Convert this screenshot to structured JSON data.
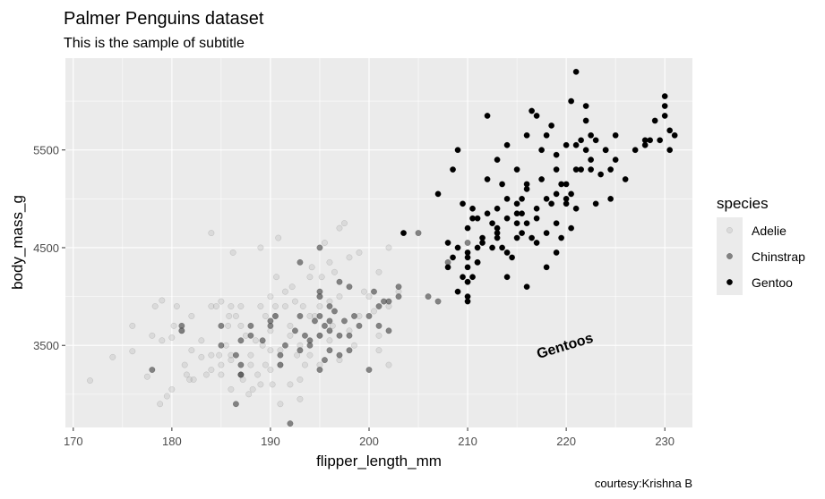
{
  "chart_data": {
    "type": "scatter",
    "title": "Palmer Penguins dataset",
    "subtitle": "This is the sample of subtitle",
    "xlabel": "flipper_length_mm",
    "ylabel": "body_mass_g",
    "caption": "courtesy:Krishna B",
    "xlim": [
      169.2,
      232.8
    ],
    "ylim": [
      2660,
      6440
    ],
    "xticks": [
      170,
      180,
      190,
      200,
      210,
      220,
      230
    ],
    "yticks": [
      3500,
      4500,
      5500
    ],
    "legend": {
      "title": "species",
      "position": "right",
      "entries": [
        {
          "name": "Adelie",
          "color": "#bbbbbb",
          "opacity": 0.35
        },
        {
          "name": "Chinstrap",
          "color": "#555555",
          "opacity": 0.7
        },
        {
          "name": "Gentoo",
          "color": "#000000",
          "opacity": 1.0
        }
      ]
    },
    "annotation": {
      "text": "Gentoos",
      "x": 220,
      "y": 3450,
      "angle": -17
    },
    "grid": true,
    "panel_background": "#ebebeb",
    "series": [
      {
        "name": "Adelie",
        "points": [
          [
            171.7,
            3140
          ],
          [
            174,
            3380
          ],
          [
            176,
            3440
          ],
          [
            177.5,
            3180
          ],
          [
            178,
            3600
          ],
          [
            178.3,
            3900
          ],
          [
            179,
            3960
          ],
          [
            178.8,
            2900
          ],
          [
            179.5,
            2980
          ],
          [
            180,
            3580
          ],
          [
            180.2,
            3700
          ],
          [
            180.5,
            3900
          ],
          [
            181,
            3650
          ],
          [
            181.3,
            3300
          ],
          [
            181.5,
            3200
          ],
          [
            181.8,
            3150
          ],
          [
            182,
            3800
          ],
          [
            182,
            3450
          ],
          [
            182.2,
            3150
          ],
          [
            183,
            3550
          ],
          [
            183,
            3380
          ],
          [
            183.5,
            3200
          ],
          [
            184,
            3900
          ],
          [
            184,
            3400
          ],
          [
            184,
            4650
          ],
          [
            184.5,
            3900
          ],
          [
            184.8,
            3400
          ],
          [
            185,
            3950
          ],
          [
            185,
            3300
          ],
          [
            185,
            3200
          ],
          [
            185.5,
            3500
          ],
          [
            185.7,
            3700
          ],
          [
            185.8,
            3800
          ],
          [
            186,
            3400
          ],
          [
            186,
            3350
          ],
          [
            186,
            3050
          ],
          [
            186.2,
            4450
          ],
          [
            186.5,
            3800
          ],
          [
            187,
            3900
          ],
          [
            187,
            3700
          ],
          [
            187.2,
            3150
          ],
          [
            187.5,
            3600
          ],
          [
            187.8,
            3000
          ],
          [
            188,
            3400
          ],
          [
            188,
            3300
          ],
          [
            188.2,
            3050
          ],
          [
            188.5,
            3550
          ],
          [
            188.7,
            3200
          ],
          [
            189,
            3900
          ],
          [
            189,
            3100
          ],
          [
            189,
            4500
          ],
          [
            189.2,
            3500
          ],
          [
            189.5,
            3800
          ],
          [
            189.5,
            3300
          ],
          [
            190,
            4000
          ],
          [
            190,
            3450
          ],
          [
            190,
            3250
          ],
          [
            190.2,
            3100
          ],
          [
            190.5,
            3900
          ],
          [
            190.5,
            3800
          ],
          [
            190.6,
            4200
          ],
          [
            190.8,
            4600
          ],
          [
            191,
            3450
          ],
          [
            191,
            3300
          ],
          [
            191,
            2900
          ],
          [
            191.5,
            3900
          ],
          [
            191.5,
            4050
          ],
          [
            192,
            3700
          ],
          [
            192,
            3600
          ],
          [
            192,
            3100
          ],
          [
            192.2,
            4100
          ],
          [
            192.5,
            3950
          ],
          [
            192.7,
            3400
          ],
          [
            193,
            3500
          ],
          [
            193,
            3150
          ],
          [
            193,
            2950
          ],
          [
            193.3,
            3900
          ],
          [
            193.5,
            3300
          ],
          [
            194,
            3800
          ],
          [
            194,
            3400
          ],
          [
            194.2,
            4300
          ],
          [
            194.5,
            3800
          ],
          [
            195,
            4000
          ],
          [
            195,
            3600
          ],
          [
            195,
            3300
          ],
          [
            195.2,
            4200
          ],
          [
            195.5,
            4550
          ],
          [
            196,
            3550
          ],
          [
            196,
            4350
          ],
          [
            196.3,
            3700
          ],
          [
            196.5,
            4250
          ],
          [
            197,
            4700
          ],
          [
            197,
            3350
          ],
          [
            197,
            4000
          ],
          [
            197.5,
            4750
          ],
          [
            198,
            3650
          ],
          [
            198,
            4400
          ],
          [
            198.5,
            3500
          ],
          [
            199,
            4450
          ],
          [
            199,
            3800
          ],
          [
            199.5,
            4050
          ],
          [
            200,
            4000
          ],
          [
            200.5,
            3850
          ],
          [
            201,
            4250
          ],
          [
            202,
            3900
          ],
          [
            202,
            4500
          ],
          [
            202,
            3300
          ],
          [
            203,
            4050
          ],
          [
            201,
            3600
          ],
          [
            201,
            3450
          ],
          [
            184,
            3250
          ],
          [
            186,
            3900
          ],
          [
            190,
            3650
          ],
          [
            195,
            3900
          ],
          [
            176,
            3700
          ],
          [
            179,
            3550
          ],
          [
            194,
            4200
          ],
          [
            196,
            3950
          ],
          [
            180,
            3050
          ]
        ]
      },
      {
        "name": "Chinstrap",
        "points": [
          [
            178,
            3250
          ],
          [
            181,
            3700
          ],
          [
            181,
            3650
          ],
          [
            185,
            3700
          ],
          [
            185,
            3500
          ],
          [
            186.5,
            3400
          ],
          [
            187,
            3300
          ],
          [
            187,
            3200
          ],
          [
            187,
            3550
          ],
          [
            187,
            3200
          ],
          [
            186.5,
            2900
          ],
          [
            188,
            3600
          ],
          [
            188,
            3700
          ],
          [
            189.2,
            3550
          ],
          [
            190,
            3700
          ],
          [
            190,
            3750
          ],
          [
            190.5,
            3800
          ],
          [
            191,
            3400
          ],
          [
            191,
            3300
          ],
          [
            191.5,
            3500
          ],
          [
            192,
            2700
          ],
          [
            192.5,
            3650
          ],
          [
            193,
            3450
          ],
          [
            193.5,
            3600
          ],
          [
            193,
            3800
          ],
          [
            194,
            3550
          ],
          [
            194,
            3500
          ],
          [
            194.5,
            3750
          ],
          [
            195,
            3600
          ],
          [
            195,
            3800
          ],
          [
            195,
            3250
          ],
          [
            195,
            4050
          ],
          [
            195,
            4500
          ],
          [
            195.5,
            3700
          ],
          [
            195.5,
            3350
          ],
          [
            196,
            3900
          ],
          [
            196,
            3650
          ],
          [
            196,
            3450
          ],
          [
            196.5,
            3850
          ],
          [
            197,
            3400
          ],
          [
            197,
            4150
          ],
          [
            197,
            3600
          ],
          [
            197.5,
            3750
          ],
          [
            198,
            3600
          ],
          [
            198,
            4100
          ],
          [
            198,
            3450
          ],
          [
            198.5,
            3800
          ],
          [
            199,
            3700
          ],
          [
            200,
            3800
          ],
          [
            200,
            3250
          ],
          [
            200.5,
            4050
          ],
          [
            201,
            3700
          ],
          [
            201.5,
            3950
          ],
          [
            201,
            3900
          ],
          [
            202,
            3950
          ],
          [
            202,
            3650
          ],
          [
            203,
            4100
          ],
          [
            203,
            4000
          ],
          [
            205,
            4650
          ],
          [
            206,
            4000
          ],
          [
            207,
            3950
          ],
          [
            208,
            4350
          ],
          [
            210,
            4550
          ],
          [
            210,
            4150
          ],
          [
            195,
            4000
          ],
          [
            193,
            4350
          ],
          [
            196,
            3750
          ]
        ]
      },
      {
        "name": "Gentoo",
        "points": [
          [
            203.5,
            4650
          ],
          [
            208,
            4550
          ],
          [
            208,
            4300
          ],
          [
            208.5,
            4400
          ],
          [
            209,
            4500
          ],
          [
            209,
            4050
          ],
          [
            209.5,
            4200
          ],
          [
            210,
            4400
          ],
          [
            210,
            4150
          ],
          [
            210,
            4300
          ],
          [
            210,
            4700
          ],
          [
            210,
            3950
          ],
          [
            210,
            4000
          ],
          [
            210.5,
            4200
          ],
          [
            210.5,
            4900
          ],
          [
            211,
            4350
          ],
          [
            211,
            4500
          ],
          [
            211,
            4800
          ],
          [
            211.5,
            4600
          ],
          [
            212,
            4850
          ],
          [
            212.5,
            4750
          ],
          [
            213,
            4700
          ],
          [
            213,
            4600
          ],
          [
            213,
            4900
          ],
          [
            213.5,
            4500
          ],
          [
            214,
            4800
          ],
          [
            214,
            5000
          ],
          [
            214.5,
            4400
          ],
          [
            215,
            4950
          ],
          [
            215,
            4750
          ],
          [
            215,
            4850
          ],
          [
            215.5,
            5000
          ],
          [
            215.5,
            4650
          ],
          [
            216,
            4100
          ],
          [
            216,
            5150
          ],
          [
            216,
            4750
          ],
          [
            216.5,
            4600
          ],
          [
            217,
            4800
          ],
          [
            217,
            4550
          ],
          [
            217.5,
            5200
          ],
          [
            218,
            5000
          ],
          [
            218,
            4650
          ],
          [
            218.5,
            4950
          ],
          [
            219,
            4750
          ],
          [
            219,
            5300
          ],
          [
            219.5,
            4600
          ],
          [
            220,
            5150
          ],
          [
            220,
            5000
          ],
          [
            220.5,
            5050
          ],
          [
            220.5,
            4700
          ],
          [
            221,
            5300
          ],
          [
            221,
            4900
          ],
          [
            221.5,
            5600
          ],
          [
            222,
            5800
          ],
          [
            222,
            5500
          ],
          [
            222.5,
            5400
          ],
          [
            223,
            5600
          ],
          [
            223,
            4950
          ],
          [
            224,
            5500
          ],
          [
            224.5,
            5000
          ],
          [
            225,
            5400
          ],
          [
            226,
            5200
          ],
          [
            228,
            5600
          ],
          [
            228.5,
            5600
          ],
          [
            229,
            5800
          ],
          [
            230,
            5950
          ],
          [
            230,
            5850
          ],
          [
            230.5,
            5700
          ],
          [
            230.5,
            5500
          ],
          [
            231,
            5650
          ],
          [
            230,
            6050
          ],
          [
            212,
            5850
          ],
          [
            213,
            5400
          ],
          [
            214,
            5550
          ],
          [
            215,
            5300
          ],
          [
            216,
            5650
          ],
          [
            217,
            5850
          ],
          [
            217.5,
            5500
          ],
          [
            218.5,
            5750
          ],
          [
            219,
            5050
          ],
          [
            220,
            5550
          ],
          [
            220.5,
            6000
          ],
          [
            221.5,
            5300
          ],
          [
            222,
            5950
          ],
          [
            222.5,
            5650
          ],
          [
            223.5,
            5250
          ],
          [
            224,
            5500
          ],
          [
            221,
            6300
          ],
          [
            207,
            5050
          ],
          [
            208.5,
            5300
          ],
          [
            209,
            5500
          ],
          [
            212,
            5200
          ],
          [
            213.5,
            5150
          ],
          [
            211,
            4350
          ],
          [
            212.5,
            4500
          ],
          [
            214,
            4450
          ],
          [
            215,
            4600
          ],
          [
            218,
            4300
          ],
          [
            219,
            4450
          ],
          [
            210.5,
            4800
          ],
          [
            211.5,
            4550
          ],
          [
            209.5,
            4950
          ],
          [
            216,
            5100
          ],
          [
            218,
            5650
          ],
          [
            220,
            4950
          ],
          [
            222.5,
            5300
          ],
          [
            224.5,
            5300
          ],
          [
            227,
            5500
          ],
          [
            228,
            5550
          ],
          [
            229.5,
            5600
          ],
          [
            225,
            5650
          ],
          [
            213,
            4650
          ],
          [
            215.5,
            4850
          ],
          [
            219.5,
            5150
          ],
          [
            221,
            5550
          ],
          [
            216.5,
            5900
          ],
          [
            210,
            4450
          ],
          [
            214,
            4200
          ],
          [
            217,
            4900
          ],
          [
            219,
            5450
          ]
        ]
      }
    ]
  }
}
